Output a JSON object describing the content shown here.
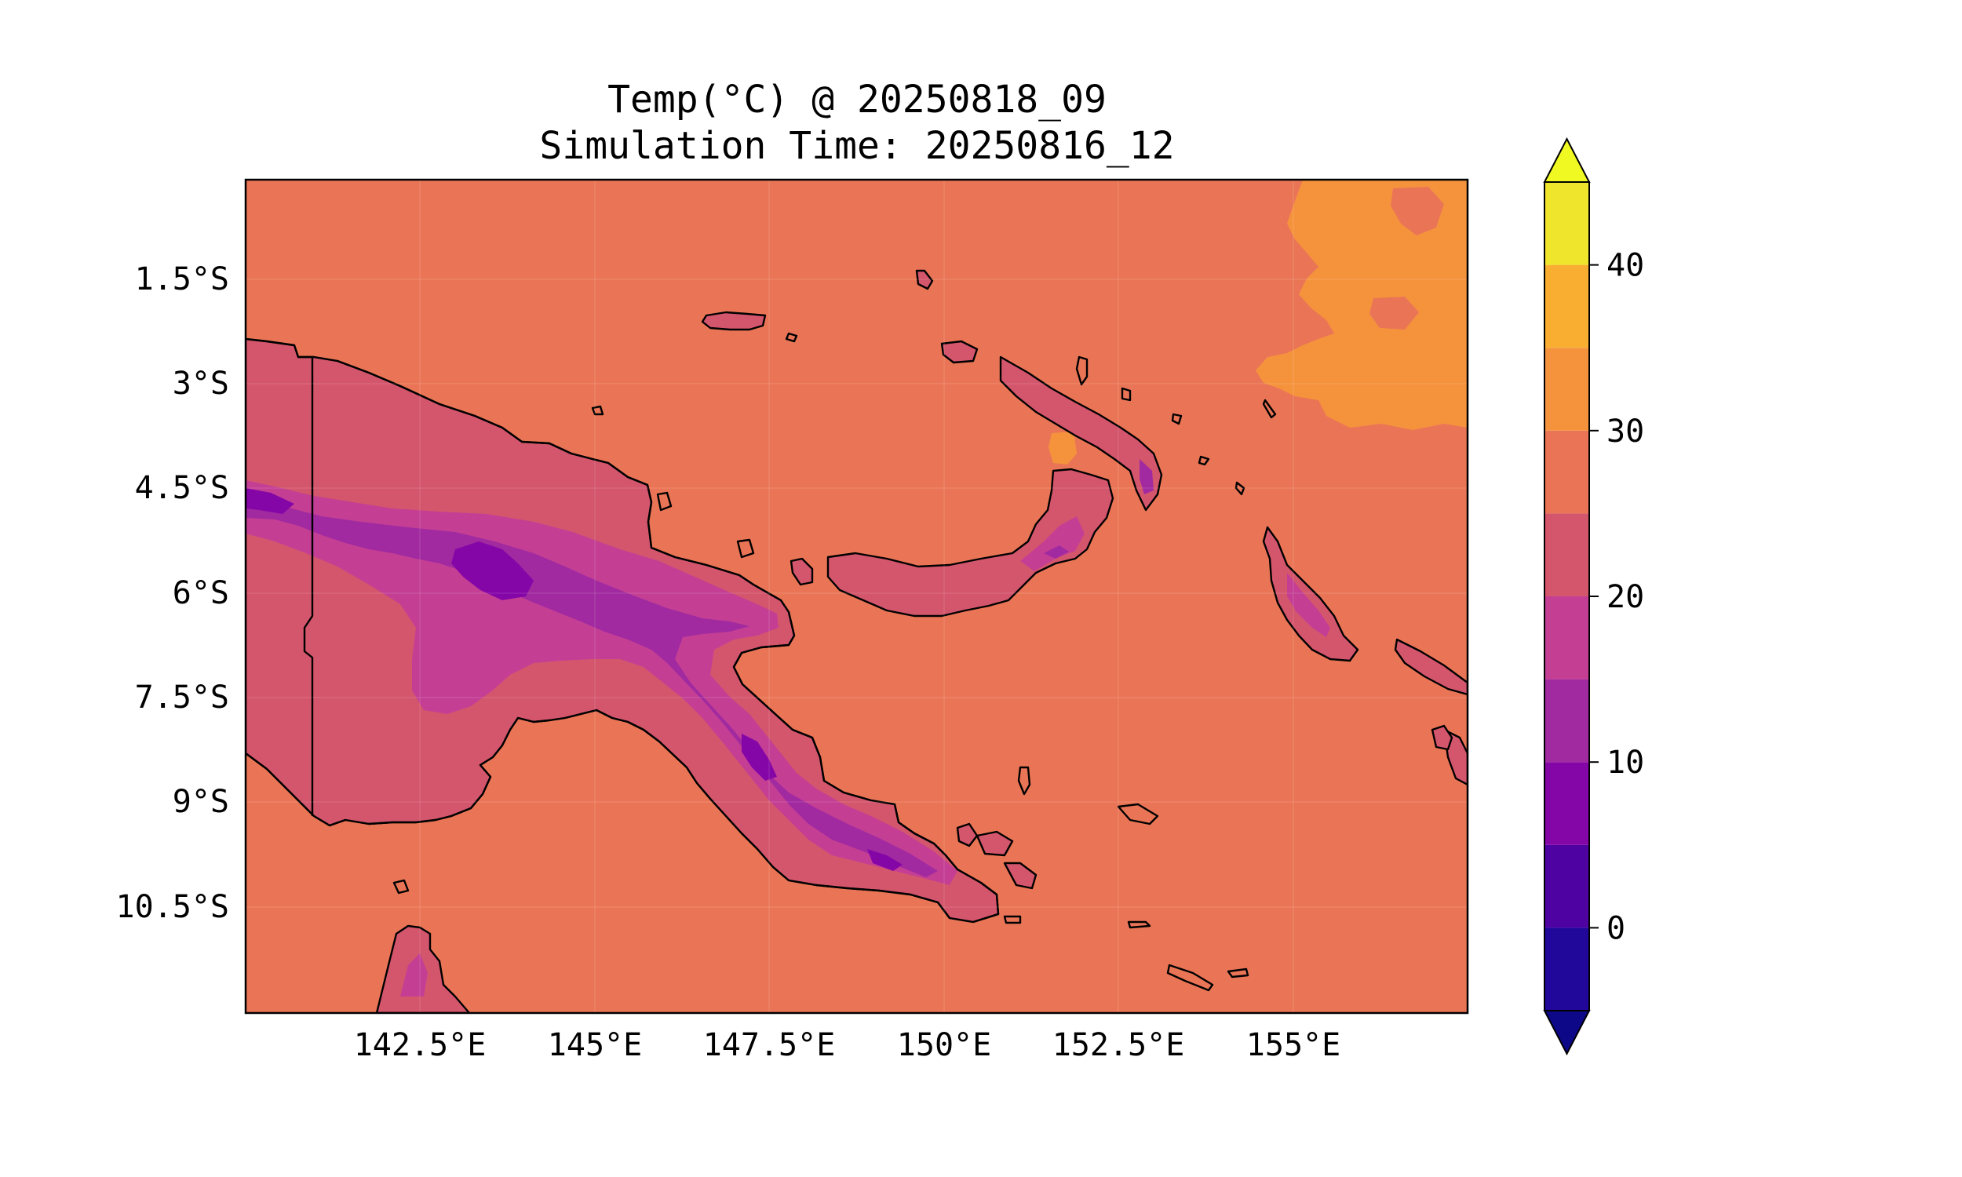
{
  "title": {
    "line1": "Temp(°C) @ 20250818_09",
    "line2": "Simulation Time: 20250816_12"
  },
  "colors": {
    "sea": "#ea7556",
    "warm_sea": "#f5933d",
    "band_15_20": "#c43f94",
    "band_20_25": "#d4566c",
    "band_10_15": "#a12aa0",
    "band_5_10": "#8506a7",
    "outline": "#000000"
  },
  "map": {
    "projection": "PlateCarree",
    "lon_range": [
      140,
      157.5
    ],
    "lat_range": [
      -12,
      0
    ],
    "gridlines": true,
    "y_ticks": [
      {
        "value": -1.5,
        "label": "1.5°S"
      },
      {
        "value": -3.0,
        "label": "3°S"
      },
      {
        "value": -4.5,
        "label": "4.5°S"
      },
      {
        "value": -6.0,
        "label": "6°S"
      },
      {
        "value": -7.5,
        "label": "7.5°S"
      },
      {
        "value": -9.0,
        "label": "9°S"
      },
      {
        "value": -10.5,
        "label": "10.5°S"
      }
    ],
    "x_ticks": [
      {
        "value": 142.5,
        "label": "142.5°E"
      },
      {
        "value": 145.0,
        "label": "145°E"
      },
      {
        "value": 147.5,
        "label": "147.5°E"
      },
      {
        "value": 150.0,
        "label": "150°E"
      },
      {
        "value": 152.5,
        "label": "152.5°E"
      },
      {
        "value": 155.0,
        "label": "155°E"
      }
    ]
  },
  "colorbar": {
    "extend": "both",
    "levels": [
      -5,
      0,
      5,
      10,
      15,
      20,
      25,
      30,
      35,
      40,
      45
    ],
    "colors": [
      "#21079a",
      "#4f02a2",
      "#8506a7",
      "#a12aa0",
      "#c43f94",
      "#d4566c",
      "#ea7556",
      "#f5933d",
      "#f9ae32",
      "#f0e52d"
    ],
    "under_color": "#0d0887",
    "over_color": "#f0f921",
    "ticks": [
      {
        "value": 0,
        "label": "0"
      },
      {
        "value": 10,
        "label": "10"
      },
      {
        "value": 20,
        "label": "20"
      },
      {
        "value": 30,
        "label": "30"
      },
      {
        "value": 40,
        "label": "40"
      }
    ]
  }
}
